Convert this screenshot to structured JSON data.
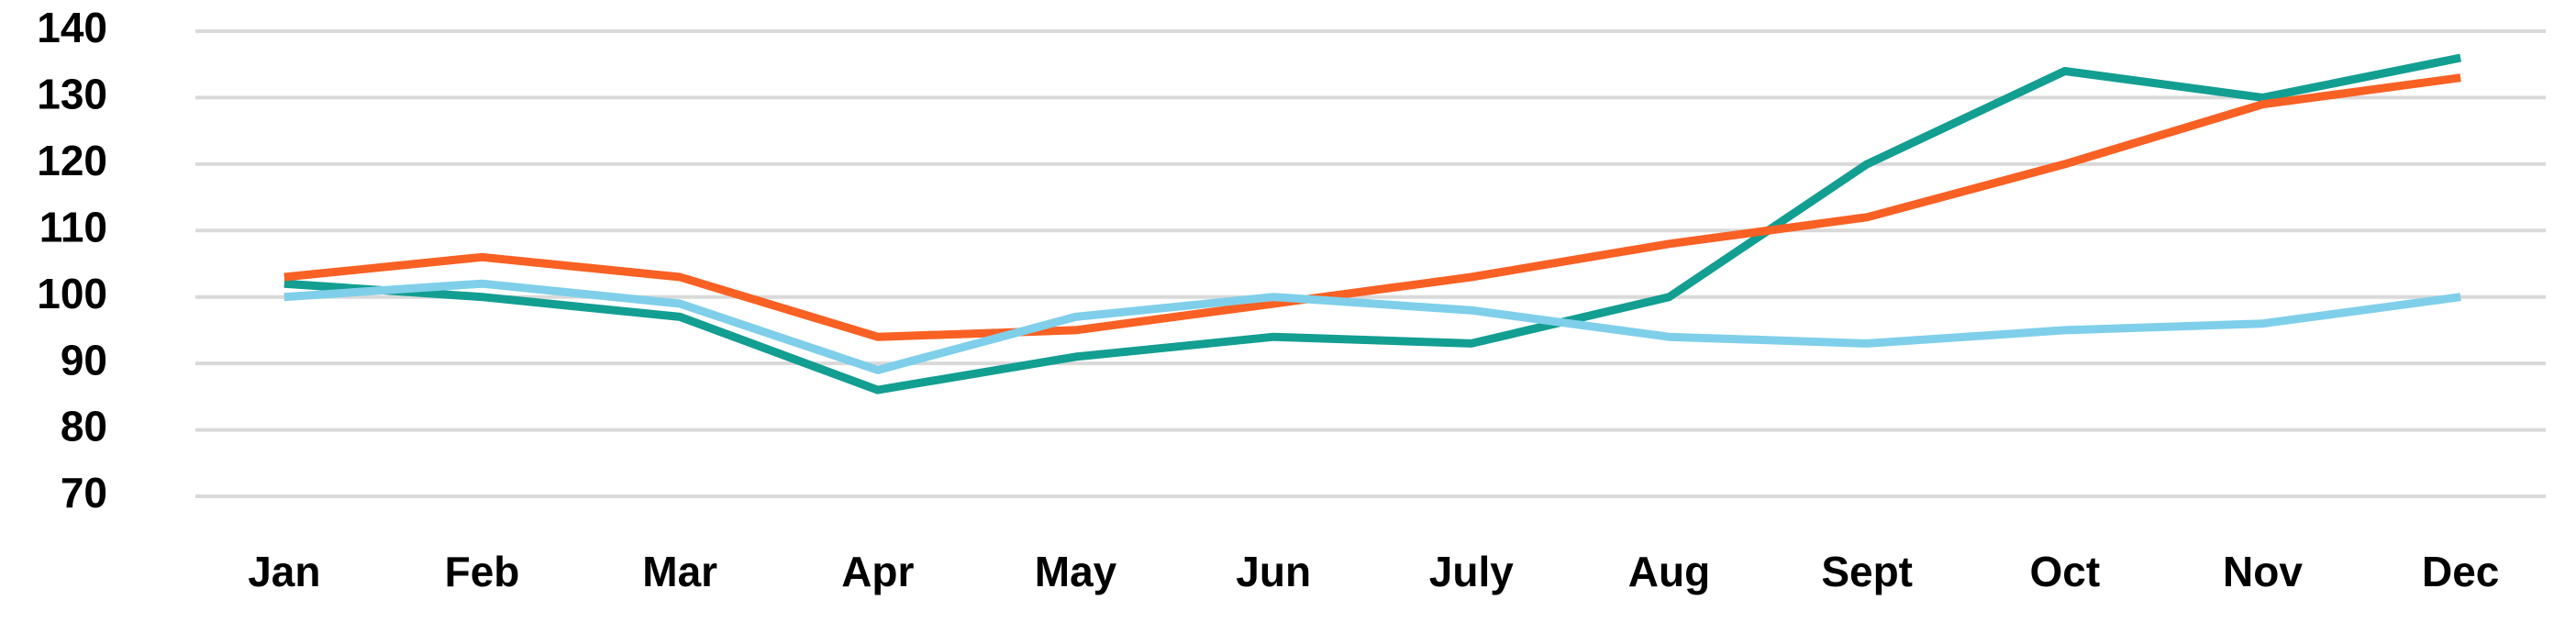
{
  "chart_data": {
    "type": "line",
    "categories": [
      "Jan",
      "Feb",
      "Mar",
      "Apr",
      "May",
      "Jun",
      "July",
      "Aug",
      "Sept",
      "Oct",
      "Nov",
      "Dec"
    ],
    "series": [
      {
        "color": "#139e92",
        "values": [
          102,
          100,
          97,
          86,
          91,
          94,
          93,
          100,
          120,
          134,
          130,
          136
        ]
      },
      {
        "color": "#f96023",
        "values": [
          103,
          106,
          103,
          94,
          95,
          99,
          103,
          108,
          112,
          120,
          129,
          133
        ]
      },
      {
        "color": "#7fcfea",
        "values": [
          100,
          102,
          99,
          89,
          97,
          100,
          98,
          94,
          93,
          95,
          96,
          100
        ]
      }
    ],
    "ylim": [
      70,
      140
    ],
    "yticks": [
      70,
      80,
      90,
      100,
      110,
      120,
      130,
      140
    ],
    "grid": true
  }
}
